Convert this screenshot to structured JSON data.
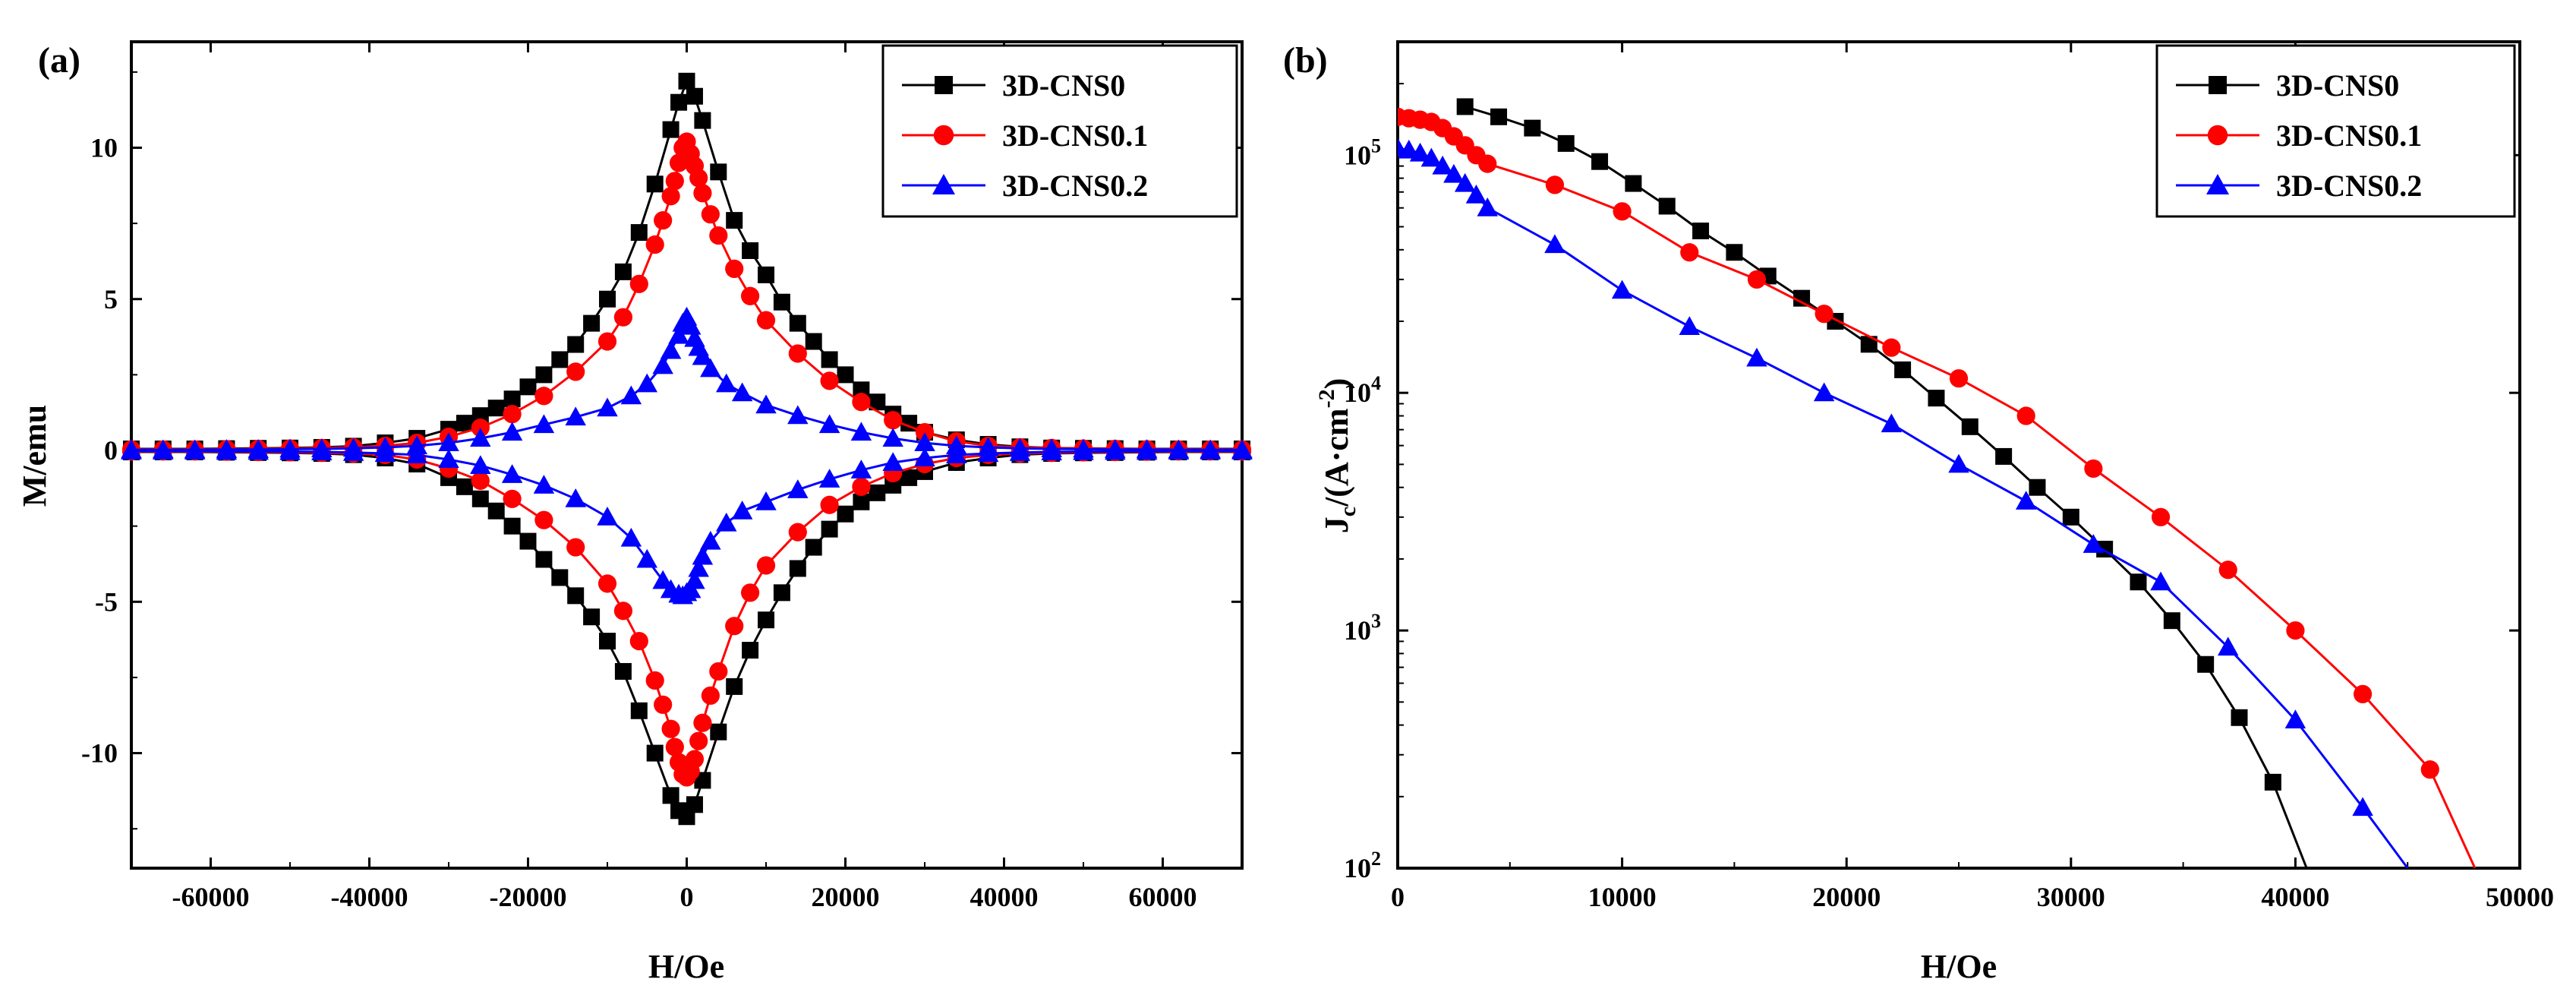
{
  "colors": {
    "s0": "#000000",
    "s1": "#ff0000",
    "s2": "#0000ff"
  },
  "chart_data": [
    {
      "panel_label": "(a)",
      "type": "line",
      "xlabel": "H/Oe",
      "ylabel": "M/emu",
      "xlim": [
        -70000,
        70000
      ],
      "ylim": [
        -13.8,
        13.5
      ],
      "xticks": [
        -60000,
        -40000,
        -20000,
        0,
        20000,
        40000,
        60000
      ],
      "yticks": [
        -10,
        -5,
        0,
        5,
        10
      ],
      "legend_position": "top-right",
      "series": [
        {
          "name": "3D-CNS0",
          "marker": "square",
          "color": "#000000",
          "x": [
            -70000,
            -66000,
            -62000,
            -58000,
            -54000,
            -50000,
            -46000,
            -42000,
            -38000,
            -34000,
            -30000,
            -28000,
            -26000,
            -24000,
            -22000,
            -20000,
            -18000,
            -16000,
            -14000,
            -12000,
            -10000,
            -8000,
            -6000,
            -4000,
            -2000,
            -1000,
            0,
            1000,
            2000,
            4000,
            6000,
            8000,
            10000,
            12000,
            14000,
            16000,
            18000,
            20000,
            22000,
            24000,
            26000,
            28000,
            30000,
            34000,
            38000,
            42000,
            46000,
            50000,
            54000,
            58000,
            62000,
            66000,
            70000,
            70000,
            66000,
            62000,
            58000,
            54000,
            50000,
            46000,
            42000,
            38000,
            34000,
            30000,
            28000,
            26000,
            24000,
            22000,
            20000,
            18000,
            16000,
            14000,
            12000,
            10000,
            8000,
            6000,
            4000,
            2000,
            1000,
            0,
            -1000,
            -2000,
            -4000,
            -6000,
            -8000,
            -10000,
            -12000,
            -14000,
            -16000,
            -18000,
            -20000,
            -22000,
            -24000,
            -26000,
            -28000,
            -30000,
            -34000,
            -38000,
            -42000,
            -46000,
            -50000,
            -54000,
            -58000,
            -62000,
            -66000,
            -70000
          ],
          "y": [
            0.05,
            0.05,
            0.05,
            0.06,
            0.07,
            0.08,
            0.1,
            0.14,
            0.25,
            0.4,
            0.7,
            0.9,
            1.15,
            1.4,
            1.7,
            2.1,
            2.5,
            3.0,
            3.5,
            4.2,
            5.0,
            5.9,
            7.2,
            8.8,
            10.6,
            11.5,
            12.2,
            11.7,
            10.9,
            9.2,
            7.6,
            6.6,
            5.8,
            4.9,
            4.2,
            3.6,
            3.0,
            2.5,
            2.0,
            1.6,
            1.2,
            0.9,
            0.6,
            0.35,
            0.2,
            0.12,
            0.08,
            0.07,
            0.06,
            0.05,
            0.05,
            0.05,
            0.05,
            -0.05,
            -0.05,
            -0.05,
            -0.06,
            -0.07,
            -0.08,
            -0.1,
            -0.14,
            -0.25,
            -0.4,
            -0.7,
            -0.9,
            -1.15,
            -1.4,
            -1.7,
            -2.1,
            -2.6,
            -3.2,
            -3.9,
            -4.7,
            -5.6,
            -6.6,
            -7.8,
            -9.3,
            -10.9,
            -11.7,
            -12.1,
            -11.9,
            -11.4,
            -10.0,
            -8.6,
            -7.3,
            -6.3,
            -5.5,
            -4.8,
            -4.2,
            -3.6,
            -3.0,
            -2.5,
            -2.0,
            -1.6,
            -1.2,
            -0.9,
            -0.45,
            -0.25,
            -0.14,
            -0.1,
            -0.08,
            -0.07,
            -0.06,
            -0.05,
            -0.05,
            -0.05
          ]
        },
        {
          "name": "3D-CNS0.1",
          "marker": "circle",
          "color": "#ff0000",
          "x": [
            -70000,
            -66000,
            -62000,
            -58000,
            -54000,
            -50000,
            -46000,
            -42000,
            -38000,
            -34000,
            -30000,
            -26000,
            -22000,
            -18000,
            -14000,
            -10000,
            -8000,
            -6000,
            -4000,
            -3000,
            -2000,
            -1500,
            -1000,
            -500,
            0,
            500,
            1000,
            1500,
            2000,
            3000,
            4000,
            6000,
            8000,
            10000,
            14000,
            18000,
            22000,
            26000,
            30000,
            34000,
            38000,
            42000,
            46000,
            50000,
            54000,
            58000,
            62000,
            66000,
            70000,
            70000,
            66000,
            62000,
            58000,
            54000,
            50000,
            46000,
            42000,
            38000,
            34000,
            30000,
            26000,
            22000,
            18000,
            14000,
            10000,
            8000,
            6000,
            4000,
            3000,
            2000,
            1500,
            1000,
            500,
            0,
            -500,
            -1000,
            -1500,
            -2000,
            -3000,
            -4000,
            -6000,
            -8000,
            -10000,
            -14000,
            -18000,
            -22000,
            -26000,
            -30000,
            -34000,
            -38000,
            -42000,
            -46000,
            -50000,
            -54000,
            -58000,
            -62000,
            -66000,
            -70000
          ],
          "y": [
            0.03,
            0.03,
            0.03,
            0.04,
            0.05,
            0.06,
            0.08,
            0.1,
            0.15,
            0.25,
            0.45,
            0.75,
            1.2,
            1.8,
            2.6,
            3.6,
            4.4,
            5.5,
            6.8,
            7.6,
            8.4,
            8.9,
            9.5,
            10.0,
            10.2,
            9.8,
            9.4,
            9.0,
            8.5,
            7.8,
            7.1,
            6.0,
            5.1,
            4.3,
            3.2,
            2.3,
            1.6,
            1.0,
            0.6,
            0.3,
            0.15,
            0.1,
            0.08,
            0.06,
            0.05,
            0.04,
            0.03,
            0.03,
            0.03,
            -0.03,
            -0.03,
            -0.03,
            -0.04,
            -0.05,
            -0.06,
            -0.08,
            -0.1,
            -0.15,
            -0.25,
            -0.45,
            -0.75,
            -1.2,
            -1.8,
            -2.7,
            -3.8,
            -4.7,
            -5.8,
            -7.3,
            -8.1,
            -9.0,
            -9.6,
            -10.2,
            -10.6,
            -10.8,
            -10.7,
            -10.3,
            -9.8,
            -9.2,
            -8.4,
            -7.6,
            -6.3,
            -5.3,
            -4.4,
            -3.2,
            -2.3,
            -1.6,
            -1.0,
            -0.6,
            -0.3,
            -0.15,
            -0.1,
            -0.08,
            -0.06,
            -0.05,
            -0.04,
            -0.03,
            -0.03,
            -0.03
          ]
        },
        {
          "name": "3D-CNS0.2",
          "marker": "triangle",
          "color": "#0000ff",
          "x": [
            -70000,
            -66000,
            -62000,
            -58000,
            -54000,
            -50000,
            -46000,
            -42000,
            -38000,
            -34000,
            -30000,
            -26000,
            -22000,
            -18000,
            -14000,
            -10000,
            -7000,
            -5000,
            -3000,
            -2000,
            -1000,
            -500,
            0,
            500,
            1000,
            1500,
            2000,
            3000,
            5000,
            7000,
            10000,
            14000,
            18000,
            22000,
            26000,
            30000,
            34000,
            38000,
            42000,
            46000,
            50000,
            54000,
            58000,
            62000,
            66000,
            70000,
            70000,
            66000,
            62000,
            58000,
            54000,
            50000,
            46000,
            42000,
            38000,
            34000,
            30000,
            26000,
            22000,
            18000,
            14000,
            10000,
            7000,
            5000,
            3000,
            2000,
            1500,
            1000,
            500,
            0,
            -500,
            -1000,
            -2000,
            -3000,
            -5000,
            -7000,
            -10000,
            -14000,
            -18000,
            -22000,
            -26000,
            -30000,
            -34000,
            -38000,
            -42000,
            -46000,
            -50000,
            -54000,
            -58000,
            -62000,
            -66000,
            -70000
          ],
          "y": [
            0.02,
            0.02,
            0.02,
            0.03,
            0.03,
            0.04,
            0.05,
            0.07,
            0.1,
            0.15,
            0.25,
            0.4,
            0.6,
            0.85,
            1.1,
            1.4,
            1.8,
            2.2,
            2.8,
            3.3,
            3.8,
            4.2,
            4.4,
            4.1,
            3.7,
            3.4,
            3.1,
            2.7,
            2.2,
            1.9,
            1.5,
            1.15,
            0.85,
            0.6,
            0.4,
            0.25,
            0.15,
            0.1,
            0.07,
            0.05,
            0.04,
            0.03,
            0.03,
            0.02,
            0.02,
            0.02,
            -0.02,
            -0.02,
            -0.02,
            -0.03,
            -0.03,
            -0.04,
            -0.05,
            -0.07,
            -0.1,
            -0.15,
            -0.25,
            -0.4,
            -0.65,
            -0.95,
            -1.3,
            -1.7,
            -2.0,
            -2.4,
            -3.0,
            -3.5,
            -3.9,
            -4.3,
            -4.6,
            -4.7,
            -4.8,
            -4.75,
            -4.6,
            -4.3,
            -3.6,
            -2.9,
            -2.2,
            -1.6,
            -1.15,
            -0.8,
            -0.5,
            -0.3,
            -0.15,
            -0.1,
            -0.07,
            -0.05,
            -0.04,
            -0.03,
            -0.03,
            -0.02,
            -0.02,
            -0.02
          ]
        }
      ]
    },
    {
      "panel_label": "(b)",
      "type": "line",
      "xlabel": "H/Oe",
      "ylabel": "J_c/(A·cm^-2)",
      "yscale": "log",
      "xlim": [
        0,
        50000
      ],
      "ylim": [
        100,
        300000
      ],
      "xticks": [
        0,
        10000,
        20000,
        30000,
        40000,
        50000
      ],
      "yticks": [
        100,
        1000,
        10000,
        100000
      ],
      "legend_position": "top-right",
      "series": [
        {
          "name": "3D-CNS0",
          "marker": "square",
          "color": "#000000",
          "x": [
            3000,
            4500,
            6000,
            7500,
            9000,
            10500,
            12000,
            13500,
            15000,
            16500,
            18000,
            19500,
            21000,
            22500,
            24000,
            25500,
            27000,
            28500,
            30000,
            31500,
            33000,
            34500,
            36000,
            37500,
            39000,
            40500
          ],
          "y": [
            160000,
            145000,
            130000,
            112000,
            94000,
            76000,
            61000,
            48000,
            39000,
            31000,
            25000,
            20000,
            16000,
            12500,
            9500,
            7200,
            5400,
            4000,
            3000,
            2200,
            1600,
            1100,
            720,
            430,
            230,
            100
          ]
        },
        {
          "name": "3D-CNS0.1",
          "marker": "circle",
          "color": "#ff0000",
          "x": [
            0,
            500,
            1000,
            1500,
            2000,
            2500,
            3000,
            3500,
            4000,
            7000,
            10000,
            13000,
            16000,
            19000,
            22000,
            25000,
            28000,
            31000,
            34000,
            37000,
            40000,
            43000,
            46000,
            48000
          ],
          "y": [
            145000,
            143000,
            141000,
            138000,
            130000,
            120000,
            110000,
            100000,
            92000,
            75000,
            58000,
            39000,
            30000,
            21500,
            15500,
            11500,
            8000,
            4800,
            3000,
            1800,
            1000,
            540,
            260,
            100
          ]
        },
        {
          "name": "3D-CNS0.2",
          "marker": "triangle",
          "color": "#0000ff",
          "x": [
            0,
            500,
            1000,
            1500,
            2000,
            2500,
            3000,
            3500,
            4000,
            7000,
            10000,
            13000,
            16000,
            19000,
            22000,
            25000,
            28000,
            31000,
            34000,
            37000,
            40000,
            43000,
            45000
          ],
          "y": [
            107000,
            105000,
            102000,
            97000,
            90000,
            83000,
            76000,
            68000,
            60000,
            42000,
            27000,
            19000,
            14000,
            10000,
            7400,
            5000,
            3500,
            2300,
            1600,
            850,
            420,
            180,
            100
          ]
        }
      ]
    }
  ]
}
